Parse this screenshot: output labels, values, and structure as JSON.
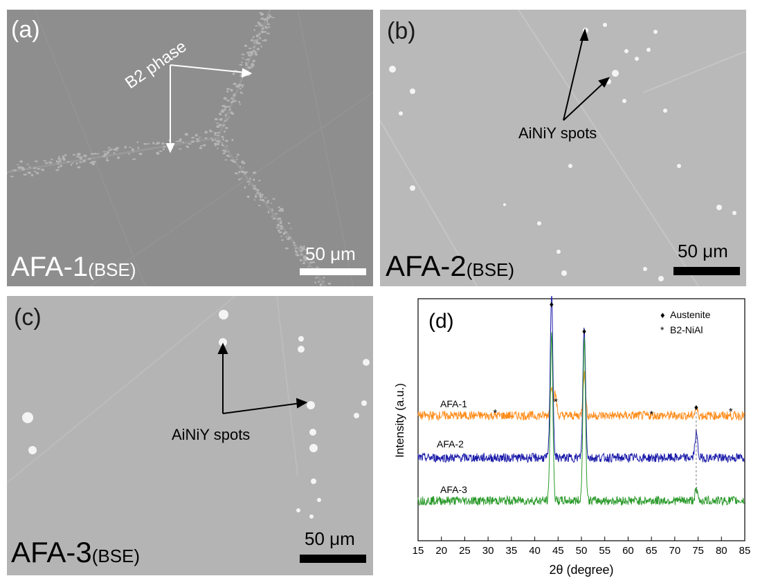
{
  "panels": {
    "a": {
      "label": "(a)",
      "annotation": "B2 phase",
      "sample": "AFA-1",
      "mode": "(BSE)",
      "scale_bar": "50 μm",
      "background": "#8e8e8e",
      "scale_bar_color": "#ffffff",
      "text_color": "#ffffff"
    },
    "b": {
      "label": "(b)",
      "annotation": "AiNiY spots",
      "sample": "AFA-2",
      "mode": "(BSE)",
      "scale_bar": "50 μm",
      "background": "#b9b9b9",
      "scale_bar_color": "#000000",
      "text_color": "#1a1a1a"
    },
    "c": {
      "label": "(c)",
      "annotation": "AiNiY spots",
      "sample": "AFA-3",
      "mode": "(BSE)",
      "scale_bar": "50 μm",
      "background": "#b4b4b4",
      "scale_bar_color": "#000000",
      "text_color": "#1a1a1a"
    }
  },
  "chart_data": {
    "type": "line",
    "panel_label": "(d)",
    "xlabel": "2θ (degree)",
    "ylabel": "Intensity (a.u.)",
    "xlim": [
      15,
      85
    ],
    "xticks": [
      15,
      20,
      25,
      30,
      35,
      40,
      45,
      50,
      55,
      60,
      65,
      70,
      75,
      80,
      85
    ],
    "grid": false,
    "legend": {
      "placement": "top-right",
      "entries": [
        {
          "symbol": "♦",
          "label": "Austenite"
        },
        {
          "symbol": "*",
          "label": "B2-NiAl"
        }
      ]
    },
    "series": [
      {
        "name": "AFA-1",
        "color": "#ff8c1a",
        "peaks": [
          [
            43.6,
            0.45
          ],
          [
            44.4,
            0.3
          ],
          [
            50.6,
            0.6
          ],
          [
            74.6,
            0.1
          ]
        ]
      },
      {
        "name": "AFA-2",
        "color": "#1a1aaa",
        "peaks": [
          [
            43.6,
            2.4
          ],
          [
            50.6,
            1.9
          ],
          [
            74.6,
            0.35
          ]
        ]
      },
      {
        "name": "AFA-3",
        "color": "#2a9a2a",
        "peaks": [
          [
            43.6,
            2.4
          ],
          [
            50.6,
            2.35
          ],
          [
            74.6,
            0.15
          ]
        ]
      }
    ],
    "austenite_markers": [
      43.6,
      50.6,
      74.6
    ],
    "b2_markers": [
      31.5,
      44.5,
      65,
      82
    ],
    "dashed_reference_x": 74.6
  }
}
